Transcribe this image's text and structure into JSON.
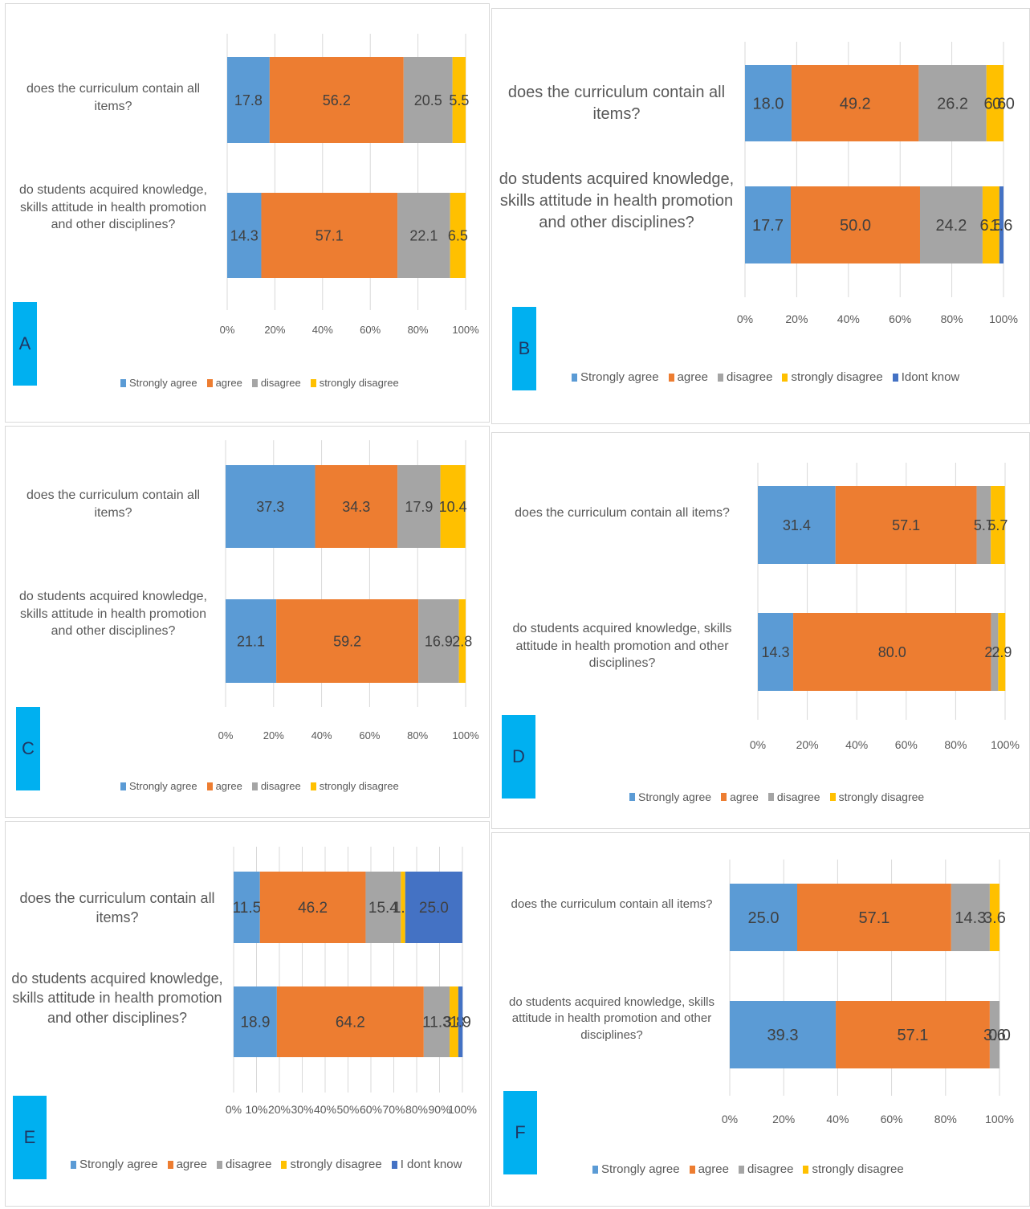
{
  "colors": {
    "strongly_agree": "#5b9bd5",
    "agree": "#ed7d31",
    "disagree": "#a5a5a5",
    "strongly_disagree": "#ffc000",
    "dont_know": "#4472c4",
    "tag": "#00b0f0"
  },
  "chart_data": [
    {
      "type": "bar",
      "orientation": "horizontal-stacked-100",
      "panel_label": "A",
      "categories": [
        "does the curriculum contain all items?",
        "do students acquired knowledge, skills attitude in health promotion and other disciplines?"
      ],
      "series": [
        {
          "name": "Strongly agree",
          "color": "#5b9bd5",
          "values": [
            17.8,
            14.3
          ],
          "labels": [
            "17.8",
            "14.3"
          ]
        },
        {
          "name": "agree",
          "color": "#ed7d31",
          "values": [
            56.2,
            57.1
          ],
          "labels": [
            "56.2",
            "57.1"
          ]
        },
        {
          "name": "disagree",
          "color": "#a5a5a5",
          "values": [
            20.5,
            22.1
          ],
          "labels": [
            "20.5",
            "22.1"
          ]
        },
        {
          "name": "strongly disagree",
          "color": "#ffc000",
          "values": [
            5.5,
            6.5
          ],
          "labels": [
            "5.5",
            "6.5"
          ]
        }
      ],
      "xticks": [
        "0%",
        "20%",
        "40%",
        "60%",
        "80%",
        "100%"
      ],
      "xlim": [
        0,
        100
      ],
      "grid": true,
      "legend": "bottom"
    },
    {
      "type": "bar",
      "orientation": "horizontal-stacked-100",
      "panel_label": "B",
      "categories": [
        "does the curriculum contain all items?",
        "do students acquired knowledge, skills attitude in health promotion and other disciplines?"
      ],
      "series": [
        {
          "name": "Strongly agree",
          "color": "#5b9bd5",
          "values": [
            18.0,
            17.7
          ],
          "labels": [
            "18.0",
            "17.7"
          ]
        },
        {
          "name": "agree",
          "color": "#ed7d31",
          "values": [
            49.2,
            50.0
          ],
          "labels": [
            "49.2",
            "50.0"
          ]
        },
        {
          "name": "disagree",
          "color": "#a5a5a5",
          "values": [
            26.2,
            24.2
          ],
          "labels": [
            "26.2",
            "24.2"
          ]
        },
        {
          "name": "strongly disagree",
          "color": "#ffc000",
          "values": [
            6.6,
            6.5
          ],
          "labels": [
            "6.6",
            "6.5"
          ]
        },
        {
          "name": "Idont know",
          "color": "#4472c4",
          "values": [
            0.0,
            1.6
          ],
          "labels": [
            "0.0",
            "1.6"
          ]
        }
      ],
      "xticks": [
        "0%",
        "20%",
        "40%",
        "60%",
        "80%",
        "100%"
      ],
      "xlim": [
        0,
        100
      ],
      "grid": true,
      "legend": "bottom"
    },
    {
      "type": "bar",
      "orientation": "horizontal-stacked-100",
      "panel_label": "C",
      "categories": [
        "does the curriculum contain all items?",
        "do students acquired knowledge, skills attitude in health promotion and other disciplines?"
      ],
      "series": [
        {
          "name": "Strongly agree",
          "color": "#5b9bd5",
          "values": [
            37.3,
            21.1
          ],
          "labels": [
            "37.3",
            "21.1"
          ]
        },
        {
          "name": "agree",
          "color": "#ed7d31",
          "values": [
            34.3,
            59.2
          ],
          "labels": [
            "34.3",
            "59.2"
          ]
        },
        {
          "name": "disagree",
          "color": "#a5a5a5",
          "values": [
            17.9,
            16.9
          ],
          "labels": [
            "17.9",
            "16.9"
          ]
        },
        {
          "name": "strongly disagree",
          "color": "#ffc000",
          "values": [
            10.4,
            2.8
          ],
          "labels": [
            "10.4",
            "2.8"
          ]
        }
      ],
      "xticks": [
        "0%",
        "20%",
        "40%",
        "60%",
        "80%",
        "100%"
      ],
      "xlim": [
        0,
        100
      ],
      "grid": true,
      "legend": "bottom"
    },
    {
      "type": "bar",
      "orientation": "horizontal-stacked-100",
      "panel_label": "D",
      "categories": [
        "does the curriculum contain all items?",
        "do students acquired knowledge, skills attitude in health promotion and other disciplines?"
      ],
      "series": [
        {
          "name": "Strongly agree",
          "color": "#5b9bd5",
          "values": [
            31.4,
            14.3
          ],
          "labels": [
            "31.4",
            "14.3"
          ]
        },
        {
          "name": "agree",
          "color": "#ed7d31",
          "values": [
            57.1,
            80.0
          ],
          "labels": [
            "57.1",
            "80.0"
          ]
        },
        {
          "name": "disagree",
          "color": "#a5a5a5",
          "values": [
            5.7,
            2.9
          ],
          "labels": [
            "5.7",
            "2.9"
          ]
        },
        {
          "name": "strongly disagree",
          "color": "#ffc000",
          "values": [
            5.7,
            2.9
          ],
          "labels": [
            "5.7",
            "2.9"
          ]
        }
      ],
      "xticks": [
        "0%",
        "20%",
        "40%",
        "60%",
        "80%",
        "100%"
      ],
      "xlim": [
        0,
        100
      ],
      "grid": true,
      "legend": "bottom"
    },
    {
      "type": "bar",
      "orientation": "horizontal-stacked-100",
      "panel_label": "E",
      "categories": [
        "does the curriculum contain all items?",
        "do students acquired knowledge, skills attitude in health promotion and other disciplines?"
      ],
      "series": [
        {
          "name": "Strongly agree",
          "color": "#5b9bd5",
          "values": [
            11.5,
            18.9
          ],
          "labels": [
            "11.5",
            "18.9"
          ]
        },
        {
          "name": "agree",
          "color": "#ed7d31",
          "values": [
            46.2,
            64.2
          ],
          "labels": [
            "46.2",
            "64.2"
          ]
        },
        {
          "name": "disagree",
          "color": "#a5a5a5",
          "values": [
            15.4,
            11.3
          ],
          "labels": [
            "15.4",
            "11.3"
          ]
        },
        {
          "name": "strongly disagree",
          "color": "#ffc000",
          "values": [
            1.9,
            3.8
          ],
          "labels": [
            "1.9",
            "3.8"
          ]
        },
        {
          "name": "I dont know",
          "color": "#4472c4",
          "values": [
            25.0,
            1.9
          ],
          "labels": [
            "25.0",
            "1.9"
          ]
        }
      ],
      "xticks": [
        "0%",
        "10%",
        "20%",
        "30%",
        "40%",
        "50%",
        "60%",
        "70%",
        "80%",
        "90%",
        "100%"
      ],
      "xlim": [
        0,
        100
      ],
      "grid": true,
      "legend": "bottom"
    },
    {
      "type": "bar",
      "orientation": "horizontal-stacked-100",
      "panel_label": "F",
      "categories": [
        "does the curriculum contain all items?",
        "do students acquired knowledge, skills attitude in health promotion and other disciplines?"
      ],
      "series": [
        {
          "name": "Strongly agree",
          "color": "#5b9bd5",
          "values": [
            25.0,
            39.3
          ],
          "labels": [
            "25.0",
            "39.3"
          ]
        },
        {
          "name": "agree",
          "color": "#ed7d31",
          "values": [
            57.1,
            57.1
          ],
          "labels": [
            "57.1",
            "57.1"
          ]
        },
        {
          "name": "disagree",
          "color": "#a5a5a5",
          "values": [
            14.3,
            3.6
          ],
          "labels": [
            "14.3",
            "3.6"
          ]
        },
        {
          "name": "strongly disagree",
          "color": "#ffc000",
          "values": [
            3.6,
            0.0
          ],
          "labels": [
            "3.6",
            "0.0"
          ]
        }
      ],
      "xticks": [
        "0%",
        "20%",
        "40%",
        "60%",
        "80%",
        "100%"
      ],
      "xlim": [
        0,
        100
      ],
      "grid": true,
      "legend": "bottom"
    }
  ]
}
